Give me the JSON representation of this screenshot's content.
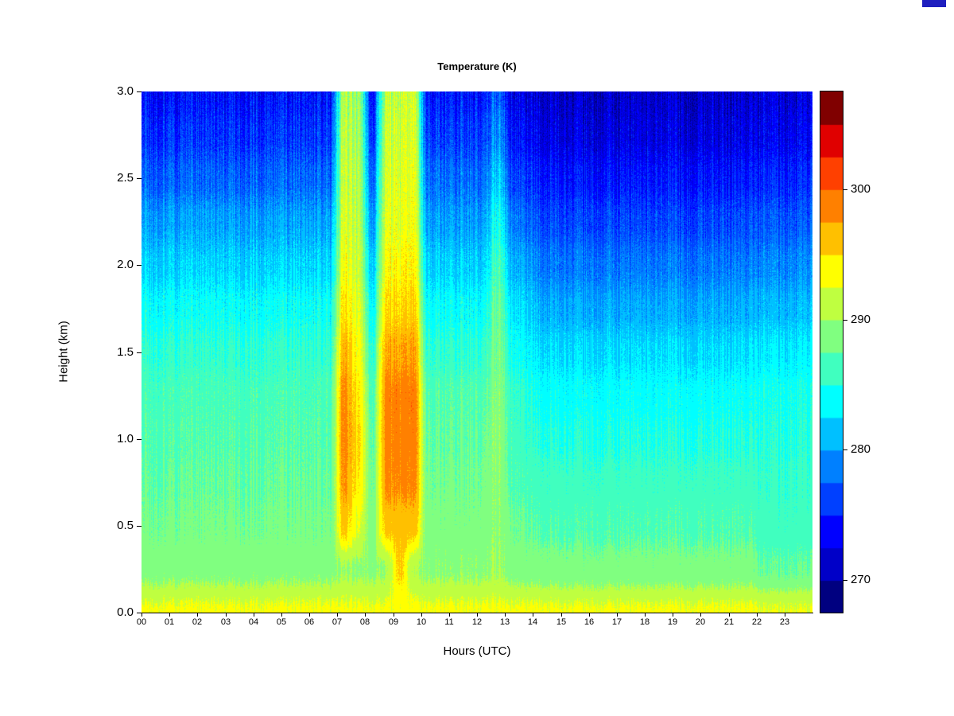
{
  "page": {
    "background": "#ffffff",
    "corner_artifact_color": "#1f1fbf"
  },
  "chart_data": {
    "type": "heatmap",
    "title": "Temperature (K)",
    "xlabel": "Hours (UTC)",
    "ylabel": "Height (km)",
    "xlim": [
      0,
      24
    ],
    "ylim": [
      0,
      3
    ],
    "x_tick_labels": [
      "00",
      "01",
      "02",
      "03",
      "04",
      "05",
      "06",
      "07",
      "08",
      "09",
      "10",
      "11",
      "12",
      "13",
      "14",
      "15",
      "16",
      "17",
      "18",
      "19",
      "20",
      "21",
      "22",
      "23"
    ],
    "y_tick_labels": [
      "0.0",
      "0.5",
      "1.0",
      "1.5",
      "2.0",
      "2.5",
      "3.0"
    ],
    "x_hours": [
      0,
      0.5,
      1,
      1.5,
      2,
      2.5,
      3,
      3.5,
      4,
      4.5,
      5,
      5.5,
      6,
      6.5,
      7,
      7.5,
      8,
      8.5,
      9,
      9.5,
      10,
      10.5,
      11,
      11.5,
      12,
      12.5,
      13,
      13.5,
      14,
      14.5,
      15,
      15.5,
      16,
      16.5,
      17,
      17.5,
      18,
      18.5,
      19,
      19.5,
      20,
      20.5,
      21,
      21.5,
      22,
      22.5,
      23,
      23.5
    ],
    "y_km": [
      0,
      0.25,
      0.5,
      0.75,
      1,
      1.25,
      1.5,
      1.75,
      2,
      2.25,
      2.5,
      2.75,
      3
    ],
    "values": [
      [
        293,
        293,
        293,
        293,
        293,
        293,
        293,
        293,
        293,
        293,
        293,
        293,
        293,
        293,
        293,
        293,
        293,
        293,
        293,
        293,
        293,
        293,
        293,
        293,
        293,
        293,
        293,
        293,
        293,
        293,
        293,
        293,
        293,
        293,
        293,
        293,
        293,
        293,
        293,
        293,
        293,
        293,
        293,
        293,
        292.6,
        292.6,
        292.6,
        292.6
      ],
      [
        289,
        289,
        289,
        289,
        289,
        289,
        289,
        289,
        289,
        289,
        289,
        289,
        289,
        289,
        290,
        289.5,
        289.5,
        290,
        295.5,
        290,
        289.5,
        289.5,
        289.5,
        289.5,
        289.5,
        290,
        289,
        288.5,
        288.5,
        288.5,
        288.5,
        288.5,
        288.5,
        288.5,
        288.5,
        288.5,
        288.5,
        288.5,
        288.5,
        288.5,
        288.5,
        288.5,
        288.5,
        288.5,
        287.5,
        287.5,
        287.5,
        287.5
      ],
      [
        288,
        288,
        288,
        288,
        288,
        288,
        288,
        288,
        288,
        288,
        288,
        288,
        288,
        288,
        296,
        292.5,
        288.5,
        296,
        296,
        296,
        288.5,
        288.5,
        288.5,
        288.5,
        288.5,
        289.5,
        288,
        287.5,
        287,
        287,
        287,
        287,
        287,
        287,
        287,
        287,
        287,
        287,
        287,
        287,
        287,
        287,
        287,
        287,
        286,
        286,
        286,
        286
      ],
      [
        287.5,
        287.5,
        287.5,
        287.5,
        287.5,
        287.5,
        287.5,
        287.5,
        287.5,
        287.5,
        287.5,
        287.5,
        287.5,
        287.5,
        298,
        294.5,
        288,
        298,
        298,
        298,
        288,
        288,
        288,
        288,
        288,
        289.5,
        287,
        286.5,
        286,
        286,
        286,
        286,
        286,
        286,
        286,
        286,
        286,
        286,
        286,
        286,
        286,
        286,
        286,
        286,
        285.5,
        285.5,
        285.5,
        285.5
      ],
      [
        287,
        287,
        287,
        287,
        287,
        287,
        287,
        287,
        287,
        287,
        287,
        287,
        287,
        287,
        298.5,
        295,
        287.5,
        298.5,
        298.5,
        298.5,
        287.5,
        287.5,
        287.5,
        287.5,
        287.5,
        289.5,
        286.5,
        285.5,
        285,
        285,
        285,
        285,
        285,
        285,
        285,
        285,
        285,
        285,
        285,
        285,
        285,
        285,
        285,
        285,
        285,
        285,
        285,
        285
      ],
      [
        286.5,
        286.5,
        286.5,
        286.5,
        286.5,
        286.5,
        286.5,
        286.5,
        286.5,
        286.5,
        286.5,
        286.5,
        286.5,
        286.5,
        298.5,
        294.5,
        287,
        298.5,
        298.5,
        298.5,
        287,
        287,
        287,
        287,
        287,
        289,
        286,
        285,
        284,
        284,
        284,
        284,
        284,
        284,
        284,
        284,
        284,
        284,
        284,
        284,
        284,
        284,
        284,
        284,
        284.5,
        284.5,
        284.5,
        284.5
      ],
      [
        285.5,
        285.5,
        285.5,
        285.5,
        285.5,
        285.5,
        285.5,
        285.5,
        285.5,
        285.5,
        285.5,
        285.5,
        285.5,
        285.5,
        297,
        293.5,
        285.5,
        297,
        297,
        297,
        285.5,
        285.5,
        285.5,
        285.5,
        285.5,
        288.5,
        284.5,
        283.5,
        282.5,
        282.5,
        282.5,
        282.5,
        282.5,
        282.5,
        282.5,
        282.5,
        282.5,
        282.5,
        282.5,
        282.5,
        282.5,
        282.5,
        282.5,
        282.5,
        283,
        283,
        283,
        283
      ],
      [
        284,
        284,
        284,
        284,
        284,
        284,
        284,
        284,
        284,
        284,
        284,
        284,
        284,
        284,
        295,
        292.5,
        284,
        295,
        295,
        295,
        284,
        284,
        284,
        284,
        284,
        288,
        283,
        282,
        280.5,
        280.5,
        280.5,
        280.5,
        280.5,
        280.5,
        280.5,
        280.5,
        280.5,
        280.5,
        280.5,
        280.5,
        280.5,
        280.5,
        280.5,
        280.5,
        281,
        281,
        281,
        281
      ],
      [
        282,
        282,
        282,
        282,
        282,
        282,
        282,
        282,
        282,
        282,
        282,
        282,
        282,
        282,
        293.5,
        291.5,
        282,
        293.5,
        293.5,
        293.5,
        282,
        282,
        282,
        282,
        282,
        286.5,
        281,
        280,
        278.5,
        278.5,
        278.5,
        278.5,
        278.5,
        278.5,
        278.5,
        278.5,
        278.5,
        278.5,
        278.5,
        278.5,
        278.5,
        278.5,
        278.5,
        278.5,
        279,
        279,
        279,
        279
      ],
      [
        280,
        280,
        280,
        280,
        280,
        280,
        280,
        280,
        280,
        280,
        280,
        280,
        280,
        280,
        292.5,
        291,
        280,
        292.5,
        292.5,
        292.5,
        280,
        280,
        280,
        280,
        280,
        284.5,
        279,
        277.5,
        276.5,
        276.5,
        276.5,
        276.5,
        276.5,
        276.5,
        276.5,
        276.5,
        276.5,
        276.5,
        276.5,
        276.5,
        276.5,
        276.5,
        276.5,
        276.5,
        277,
        277,
        277,
        277
      ],
      [
        277.5,
        277.5,
        277.5,
        277.5,
        277.5,
        277.5,
        277.5,
        277.5,
        277.5,
        277.5,
        277.5,
        277.5,
        277.5,
        277.5,
        292,
        290.5,
        278,
        292,
        292,
        292,
        278,
        278,
        278,
        278,
        278,
        282,
        276.5,
        275.5,
        274.5,
        274.5,
        274.5,
        274.5,
        274.5,
        274.5,
        274.5,
        274.5,
        274.5,
        274.5,
        274.5,
        274.5,
        274.5,
        274.5,
        274.5,
        274.5,
        275,
        275,
        275,
        275
      ],
      [
        275.5,
        275.5,
        275.5,
        275.5,
        275.5,
        275.5,
        275.5,
        275.5,
        275.5,
        275.5,
        275.5,
        275.5,
        275.5,
        275.5,
        291.5,
        290,
        276,
        291.5,
        291.5,
        291.5,
        276,
        276,
        276,
        276,
        276,
        279.5,
        274.5,
        273.5,
        272.5,
        272.5,
        272.5,
        272.5,
        272.5,
        272.5,
        272.5,
        272.5,
        272.5,
        272.5,
        272.5,
        272.5,
        272.5,
        272.5,
        272.5,
        272.5,
        273,
        273,
        273,
        273
      ],
      [
        274,
        274,
        274,
        274,
        274,
        274,
        274,
        274,
        274,
        274,
        274,
        274,
        274,
        274,
        291,
        289.5,
        274.5,
        291,
        291,
        291,
        274.5,
        274.5,
        274.5,
        274.5,
        274.5,
        277.5,
        273,
        272,
        271.5,
        271.5,
        271.5,
        271.5,
        271.5,
        271.5,
        271.5,
        271.5,
        271.5,
        271.5,
        271.5,
        271.5,
        271.5,
        271.5,
        271.5,
        271.5,
        272,
        272,
        272,
        272
      ]
    ],
    "colorbar": {
      "vmin": 267.5,
      "vmax": 307.5,
      "n_levels": 16,
      "ticks": [
        270,
        280,
        290,
        300
      ],
      "palette": [
        "#000080",
        "#0000C8",
        "#0000FF",
        "#0040FF",
        "#0080FF",
        "#00C0FF",
        "#00FFFF",
        "#40FFBF",
        "#80FF80",
        "#BFFF40",
        "#FFFF00",
        "#FFC000",
        "#FF8000",
        "#FF4000",
        "#E00000",
        "#800000"
      ]
    }
  }
}
